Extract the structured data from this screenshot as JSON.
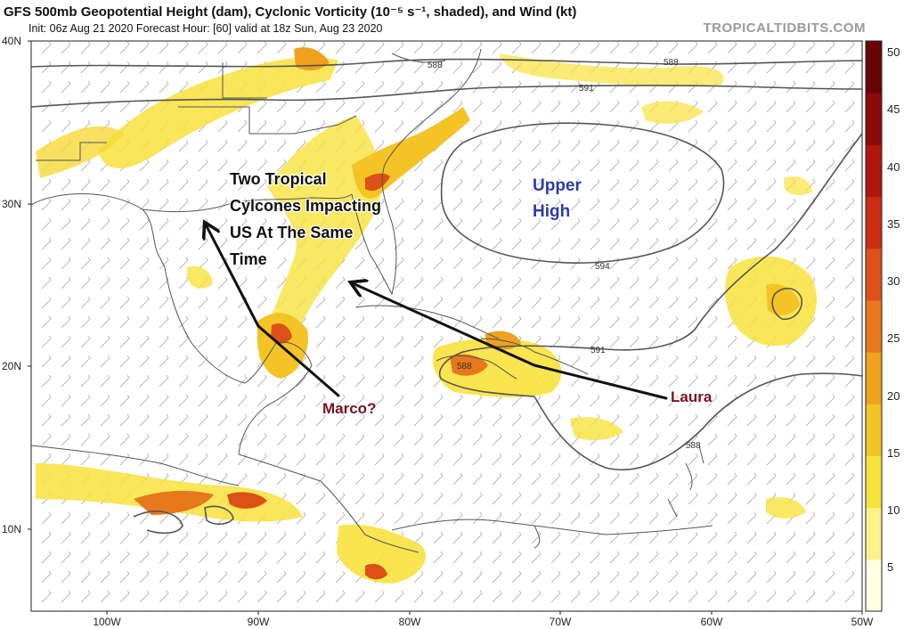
{
  "header": {
    "title": "GFS 500mb Geopotential Height (dam), Cyclonic Vorticity (10⁻⁵ s⁻¹, shaded), and Wind (kt)",
    "subtitle": "Init: 06z Aug 21 2020   Forecast Hour: [60]   valid at 18z Sun, Aug 23 2020",
    "brand": "TROPICALTIDBITS.COM"
  },
  "map": {
    "lat_labels": [
      {
        "label": "40N",
        "lat": 40
      },
      {
        "label": "30N",
        "lat": 30
      },
      {
        "label": "20N",
        "lat": 20
      },
      {
        "label": "10N",
        "lat": 10
      }
    ],
    "lon_labels": [
      {
        "label": "100W",
        "lon": -100
      },
      {
        "label": "90W",
        "lon": -90
      },
      {
        "label": "80W",
        "lon": -80
      },
      {
        "label": "70W",
        "lon": -70
      },
      {
        "label": "60W",
        "lon": -60
      },
      {
        "label": "50W",
        "lon": -50
      }
    ],
    "contour_labels": [
      "588",
      "588",
      "591",
      "594",
      "591",
      "588",
      "588"
    ],
    "colorbar": {
      "ticks": [
        "50",
        "45",
        "40",
        "35",
        "30",
        "25",
        "20",
        "15",
        "10",
        "5"
      ],
      "colors": [
        "#fefee0",
        "#fdf28a",
        "#f8e23c",
        "#f4c325",
        "#efa11f",
        "#e8781c",
        "#dd5018",
        "#c92e13",
        "#ad170e",
        "#8c0b08",
        "#6a0304"
      ]
    },
    "annotations": {
      "cyclones_line1": "Two Tropical",
      "cyclones_line2": "Cylcones Impacting",
      "cyclones_line3": "US At The Same",
      "cyclones_line4": "Time",
      "upper_high_line1": "Upper",
      "upper_high_line2": "High",
      "marco": "Marco?",
      "laura": "Laura"
    }
  }
}
